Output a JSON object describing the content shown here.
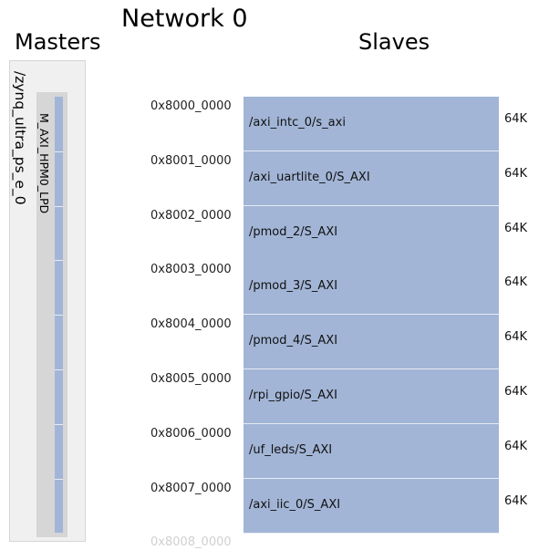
{
  "title": "Network 0",
  "masters_label": "Masters",
  "slaves_label": "Slaves",
  "master": {
    "name": "/zynq_ultra_ps_e_0",
    "port": "M_AXI_HPM0_LPD"
  },
  "slaves": [
    {
      "address": "0x8000_0000",
      "name": "/axi_intc_0/s_axi",
      "size": "64K"
    },
    {
      "address": "0x8001_0000",
      "name": "/axi_uartlite_0/S_AXI",
      "size": "64K"
    },
    {
      "address": "0x8002_0000",
      "name": "/pmod_2/S_AXI",
      "size": "64K"
    },
    {
      "address": "0x8003_0000",
      "name": "/pmod_3/S_AXI",
      "size": "64K"
    },
    {
      "address": "0x8004_0000",
      "name": "/pmod_4/S_AXI",
      "size": "64K"
    },
    {
      "address": "0x8005_0000",
      "name": "/rpi_gpio/S_AXI",
      "size": "64K"
    },
    {
      "address": "0x8006_0000",
      "name": "/uf_leds/S_AXI",
      "size": "64K"
    },
    {
      "address": "0x8007_0000",
      "name": "/axi_iic_0/S_AXI",
      "size": "64K"
    }
  ],
  "end_address": "0x8008_0000"
}
